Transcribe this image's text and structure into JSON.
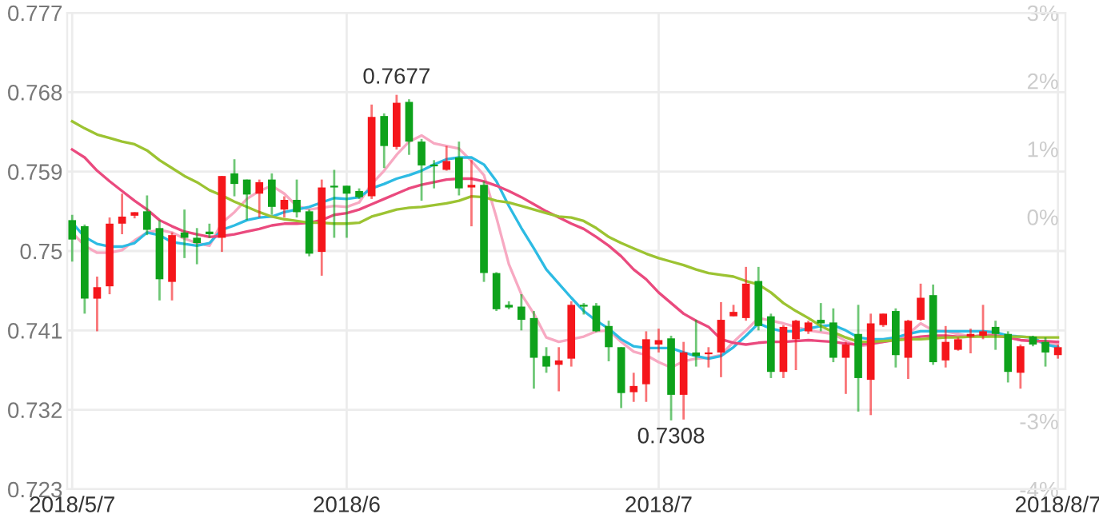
{
  "chart_data": {
    "type": "candlestick",
    "categories": [
      "2018/5/7",
      null,
      null,
      null,
      null,
      null,
      null,
      null,
      null,
      null,
      null,
      null,
      null,
      null,
      null,
      null,
      null,
      null,
      null,
      null,
      null,
      null,
      "2018/6",
      null,
      null,
      null,
      null,
      null,
      null,
      null,
      null,
      null,
      null,
      null,
      null,
      null,
      null,
      null,
      null,
      null,
      null,
      null,
      null,
      null,
      null,
      null,
      null,
      "2018/7",
      null,
      null,
      null,
      null,
      null,
      null,
      null,
      null,
      null,
      null,
      null,
      null,
      null,
      null,
      null,
      null,
      null,
      null,
      null,
      null,
      null,
      null,
      null,
      null,
      null,
      null,
      null,
      null,
      null,
      null,
      null,
      "2018/8/7"
    ],
    "ohlc": [
      [
        0.7535,
        0.7541,
        0.7488,
        0.7513
      ],
      [
        0.7528,
        0.753,
        0.7429,
        0.7446
      ],
      [
        0.7446,
        0.7471,
        0.7409,
        0.7459
      ],
      [
        0.746,
        0.7538,
        0.7451,
        0.7531
      ],
      [
        0.7531,
        0.7565,
        0.7519,
        0.7539
      ],
      [
        0.754,
        0.7544,
        0.7537,
        0.7544
      ],
      [
        0.7545,
        0.7563,
        0.7518,
        0.7524
      ],
      [
        0.7526,
        0.7535,
        0.7444,
        0.7468
      ],
      [
        0.7465,
        0.7521,
        0.7444,
        0.7518
      ],
      [
        0.7521,
        0.7547,
        0.7492,
        0.7515
      ],
      [
        0.7515,
        0.7526,
        0.7485,
        0.7509
      ],
      [
        0.7522,
        0.7531,
        0.7515,
        0.7519
      ],
      [
        0.7515,
        0.7585,
        0.7499,
        0.7585
      ],
      [
        0.7588,
        0.7604,
        0.7562,
        0.7576
      ],
      [
        0.7581,
        0.7581,
        0.7535,
        0.7564
      ],
      [
        0.7565,
        0.7581,
        0.7538,
        0.7578
      ],
      [
        0.7581,
        0.7588,
        0.7541,
        0.755
      ],
      [
        0.7547,
        0.7562,
        0.7538,
        0.7558
      ],
      [
        0.7558,
        0.7581,
        0.7538,
        0.7544
      ],
      [
        0.7545,
        0.7547,
        0.7494,
        0.7497
      ],
      [
        0.7499,
        0.7581,
        0.7472,
        0.7572
      ],
      [
        0.7574,
        0.7592,
        0.7515,
        0.7572
      ],
      [
        0.7574,
        0.7574,
        0.7515,
        0.7565
      ],
      [
        0.7568,
        0.7571,
        0.7559,
        0.7561
      ],
      [
        0.7562,
        0.7666,
        0.7559,
        0.7652
      ],
      [
        0.7653,
        0.7656,
        0.7594,
        0.7619
      ],
      [
        0.7618,
        0.7677,
        0.7615,
        0.7668
      ],
      [
        0.7669,
        0.7672,
        0.7609,
        0.7624
      ],
      [
        0.7624,
        0.7627,
        0.7557,
        0.7597
      ],
      [
        0.7598,
        0.7603,
        0.7571,
        0.7596
      ],
      [
        0.7592,
        0.7619,
        0.7591,
        0.7602
      ],
      [
        0.7606,
        0.7624,
        0.7563,
        0.7571
      ],
      [
        0.7572,
        0.7603,
        0.7528,
        0.7575
      ],
      [
        0.7575,
        0.7579,
        0.7465,
        0.7475
      ],
      [
        0.7475,
        0.7476,
        0.7432,
        0.7434
      ],
      [
        0.7439,
        0.7443,
        0.7434,
        0.7436
      ],
      [
        0.7437,
        0.7451,
        0.741,
        0.7422
      ],
      [
        0.7424,
        0.7432,
        0.7344,
        0.7379
      ],
      [
        0.7381,
        0.7391,
        0.7362,
        0.7369
      ],
      [
        0.7371,
        0.7391,
        0.7341,
        0.7376
      ],
      [
        0.7378,
        0.7443,
        0.7369,
        0.7439
      ],
      [
        0.7439,
        0.7441,
        0.7428,
        0.7437
      ],
      [
        0.7438,
        0.7441,
        0.7408,
        0.7409
      ],
      [
        0.7415,
        0.7421,
        0.7375,
        0.7391
      ],
      [
        0.7391,
        0.7391,
        0.7322,
        0.7339
      ],
      [
        0.734,
        0.7362,
        0.7329,
        0.7347
      ],
      [
        0.7349,
        0.7409,
        0.7329,
        0.74
      ],
      [
        0.7394,
        0.7412,
        0.7385,
        0.7399
      ],
      [
        0.7401,
        0.7404,
        0.7308,
        0.7337
      ],
      [
        0.7337,
        0.7397,
        0.7309,
        0.7385
      ],
      [
        0.7385,
        0.7422,
        0.7369,
        0.7381
      ],
      [
        0.7383,
        0.7391,
        0.7368,
        0.7385
      ],
      [
        0.7385,
        0.7442,
        0.7357,
        0.7422
      ],
      [
        0.7426,
        0.7439,
        0.7426,
        0.7431
      ],
      [
        0.7424,
        0.7482,
        0.7421,
        0.7463
      ],
      [
        0.7466,
        0.7482,
        0.741,
        0.7415
      ],
      [
        0.7426,
        0.7429,
        0.7356,
        0.7363
      ],
      [
        0.7363,
        0.7416,
        0.7356,
        0.7414
      ],
      [
        0.74,
        0.7422,
        0.7365,
        0.7421
      ],
      [
        0.7409,
        0.7421,
        0.7406,
        0.7419
      ],
      [
        0.7422,
        0.7441,
        0.7409,
        0.7418
      ],
      [
        0.7419,
        0.7435,
        0.7374,
        0.7379
      ],
      [
        0.7379,
        0.7397,
        0.7338,
        0.7394
      ],
      [
        0.7406,
        0.7439,
        0.7318,
        0.7356
      ],
      [
        0.7354,
        0.7429,
        0.7314,
        0.7418
      ],
      [
        0.7416,
        0.7429,
        0.7414,
        0.7429
      ],
      [
        0.7432,
        0.7435,
        0.7368,
        0.7382
      ],
      [
        0.7379,
        0.7422,
        0.7355,
        0.7421
      ],
      [
        0.7422,
        0.7463,
        0.7421,
        0.7447
      ],
      [
        0.745,
        0.7462,
        0.7371,
        0.7374
      ],
      [
        0.7376,
        0.7415,
        0.7368,
        0.7397
      ],
      [
        0.7388,
        0.7402,
        0.7387,
        0.74
      ],
      [
        0.7403,
        0.7412,
        0.7384,
        0.7406
      ],
      [
        0.7404,
        0.7439,
        0.74,
        0.7409
      ],
      [
        0.7414,
        0.7421,
        0.7388,
        0.7406
      ],
      [
        0.7406,
        0.7409,
        0.7351,
        0.7363
      ],
      [
        0.7362,
        0.7394,
        0.7344,
        0.7392
      ],
      [
        0.7403,
        0.7404,
        0.7392,
        0.7394
      ],
      [
        0.7397,
        0.7402,
        0.7369,
        0.7385
      ],
      [
        0.7382,
        0.7394,
        0.7378,
        0.7391
      ]
    ],
    "colors": [
      "#0ea21b",
      "#0ea21b",
      "#f5161b",
      "#f5161b",
      "#f5161b",
      "#f5161b",
      "#0ea21b",
      "#0ea21b",
      "#f5161b",
      "#0ea21b",
      "#0ea21b",
      "#0ea21b",
      "#f5161b",
      "#0ea21b",
      "#0ea21b",
      "#f5161b",
      "#0ea21b",
      "#f5161b",
      "#0ea21b",
      "#0ea21b",
      "#f5161b",
      "#0ea21b",
      "#0ea21b",
      "#0ea21b",
      "#f5161b",
      "#0ea21b",
      "#f5161b",
      "#0ea21b",
      "#0ea21b",
      "#0ea21b",
      "#f5161b",
      "#0ea21b",
      "#f5161b",
      "#0ea21b",
      "#0ea21b",
      "#0ea21b",
      "#0ea21b",
      "#0ea21b",
      "#0ea21b",
      "#f5161b",
      "#f5161b",
      "#0ea21b",
      "#0ea21b",
      "#0ea21b",
      "#0ea21b",
      "#f5161b",
      "#f5161b",
      "#f5161b",
      "#0ea21b",
      "#f5161b",
      "#0ea21b",
      "#f5161b",
      "#f5161b",
      "#f5161b",
      "#f5161b",
      "#0ea21b",
      "#0ea21b",
      "#f5161b",
      "#f5161b",
      "#f5161b",
      "#0ea21b",
      "#0ea21b",
      "#f5161b",
      "#0ea21b",
      "#f5161b",
      "#f5161b",
      "#0ea21b",
      "#f5161b",
      "#f5161b",
      "#0ea21b",
      "#f5161b",
      "#f5161b",
      "#f5161b",
      "#f5161b",
      "#0ea21b",
      "#0ea21b",
      "#f5161b",
      "#0ea21b",
      "#0ea21b",
      "#f5161b"
    ],
    "series": [
      {
        "type": "line",
        "color": "#9cc332",
        "values": [
          0.7647,
          0.7639,
          0.7632,
          0.7628,
          0.7624,
          0.7621,
          0.7614,
          0.7603,
          0.7594,
          0.7585,
          0.7578,
          0.7569,
          0.7563,
          0.7556,
          0.755,
          0.7544,
          0.7539,
          0.7536,
          0.7534,
          0.7532,
          0.7532,
          0.7531,
          0.7531,
          0.7532,
          0.7539,
          0.7543,
          0.7547,
          0.7549,
          0.755,
          0.7552,
          0.7554,
          0.7557,
          0.7562,
          0.7561,
          0.7557,
          0.7555,
          0.7551,
          0.7547,
          0.7543,
          0.7539,
          0.7538,
          0.7534,
          0.7526,
          0.7516,
          0.7509,
          0.7503,
          0.7497,
          0.7492,
          0.7488,
          0.7484,
          0.7479,
          0.7475,
          0.7473,
          0.7471,
          0.7466,
          0.7462,
          0.7453,
          0.7441,
          0.7432,
          0.7424,
          0.7415,
          0.7408,
          0.7402,
          0.7397,
          0.7397,
          0.7398,
          0.7399,
          0.74,
          0.74,
          0.7401,
          0.7402,
          0.7402,
          0.7403,
          0.7403,
          0.7403,
          0.7403,
          0.7403,
          0.7402,
          0.7402,
          0.7402
        ]
      },
      {
        "type": "line",
        "color": "#ea4a7e",
        "values": [
          0.7615,
          0.7606,
          0.7591,
          0.7579,
          0.7568,
          0.7557,
          0.7547,
          0.7535,
          0.7528,
          0.7522,
          0.7519,
          0.7516,
          0.7517,
          0.7519,
          0.7522,
          0.7525,
          0.7529,
          0.7531,
          0.7531,
          0.7532,
          0.7535,
          0.7541,
          0.7543,
          0.7547,
          0.7553,
          0.7559,
          0.7565,
          0.7571,
          0.7575,
          0.7578,
          0.7581,
          0.7582,
          0.7582,
          0.7579,
          0.7574,
          0.7568,
          0.7561,
          0.7553,
          0.7545,
          0.7538,
          0.7531,
          0.7525,
          0.7516,
          0.7506,
          0.7494,
          0.7479,
          0.7468,
          0.7453,
          0.7441,
          0.7429,
          0.7421,
          0.7414,
          0.74,
          0.7396,
          0.7394,
          0.7396,
          0.7397,
          0.7397,
          0.7398,
          0.7399,
          0.7398,
          0.7397,
          0.7395,
          0.7394,
          0.7395,
          0.7397,
          0.7399,
          0.7401,
          0.7403,
          0.7404,
          0.7404,
          0.7403,
          0.7403,
          0.7404,
          0.7404,
          0.7402,
          0.7399,
          0.7398,
          0.7398,
          0.7397
        ]
      },
      {
        "type": "line",
        "color": "#2dbbe3",
        "values": [
          0.7532,
          0.7516,
          0.7508,
          0.7505,
          0.7505,
          0.7509,
          0.7521,
          0.7518,
          0.751,
          0.7508,
          0.7506,
          0.7509,
          0.7524,
          0.7529,
          0.7535,
          0.7538,
          0.7539,
          0.7544,
          0.7547,
          0.755,
          0.7555,
          0.756,
          0.7559,
          0.7561,
          0.7571,
          0.7576,
          0.7582,
          0.7586,
          0.7591,
          0.7598,
          0.7604,
          0.7606,
          0.7606,
          0.7598,
          0.7579,
          0.7551,
          0.7526,
          0.7503,
          0.7479,
          0.7463,
          0.7447,
          0.7432,
          0.7421,
          0.7412,
          0.74,
          0.7392,
          0.739,
          0.739,
          0.739,
          0.7385,
          0.7381,
          0.7378,
          0.7381,
          0.7391,
          0.7404,
          0.7418,
          0.7412,
          0.7409,
          0.7409,
          0.7412,
          0.7415,
          0.7416,
          0.741,
          0.7402,
          0.74,
          0.74,
          0.7402,
          0.7406,
          0.7409,
          0.7409,
          0.7409,
          0.7409,
          0.7409,
          0.7409,
          0.7408,
          0.7404,
          0.7403,
          0.7402,
          0.7394,
          0.7391
        ]
      },
      {
        "type": "line",
        "color": "#f7a9c2",
        "values": [
          0.7521,
          0.7506,
          0.7498,
          0.7498,
          0.7501,
          0.7512,
          0.7521,
          0.7524,
          0.7521,
          0.7514,
          0.7509,
          0.7506,
          0.7532,
          0.7544,
          0.7559,
          0.7568,
          0.7574,
          0.7565,
          0.7551,
          0.7547,
          0.7549,
          0.7551,
          0.755,
          0.7555,
          0.7576,
          0.7591,
          0.7609,
          0.7624,
          0.7631,
          0.7622,
          0.7619,
          0.7616,
          0.7602,
          0.7586,
          0.7538,
          0.7485,
          0.7451,
          0.7429,
          0.7402,
          0.7397,
          0.74,
          0.7403,
          0.7409,
          0.741,
          0.7397,
          0.7386,
          0.7382,
          0.7374,
          0.7368,
          0.7375,
          0.7378,
          0.7379,
          0.7382,
          0.7397,
          0.741,
          0.7424,
          0.7421,
          0.7418,
          0.7414,
          0.741,
          0.7408,
          0.7406,
          0.7398,
          0.7392,
          0.7394,
          0.7397,
          0.74,
          0.7406,
          0.7418,
          0.741,
          0.7409,
          0.7406,
          0.7403,
          0.7405,
          0.7406,
          0.7402,
          0.7399,
          0.7398,
          0.7396,
          0.7394
        ]
      }
    ],
    "ylim": [
      0.723,
      0.777
    ],
    "yticks": [
      0.723,
      0.732,
      0.741,
      0.75,
      0.759,
      0.768,
      0.777
    ],
    "y2lim": [
      -4,
      3
    ],
    "y2ticks": [
      {
        "value": 3,
        "label": "3%"
      },
      {
        "value": 2,
        "label": "2%"
      },
      {
        "value": 1,
        "label": "1%"
      },
      {
        "value": 0,
        "label": "0%"
      },
      {
        "value": -3,
        "label": "-3%"
      },
      {
        "value": -4,
        "label": "-4%"
      }
    ],
    "grid": true,
    "annotations": [
      {
        "text": "0.7677",
        "y": 0.7677
      },
      {
        "text": "0.7308",
        "y": 0.7308
      }
    ]
  }
}
